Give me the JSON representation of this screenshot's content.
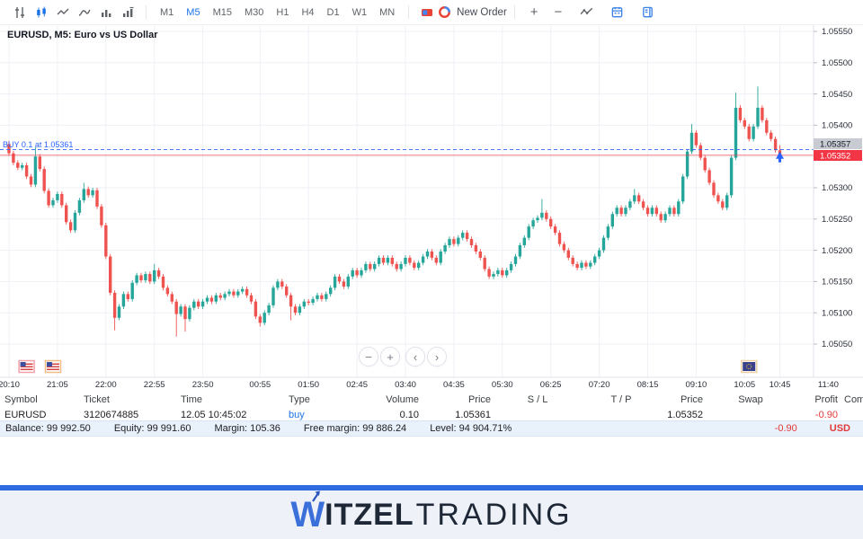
{
  "colors": {
    "candle_up": "#26a69a",
    "candle_down": "#ef5350",
    "accent_blue": "#1a73e8",
    "buy_line_blue": "#2962ff",
    "price_badge_red": "#f23645",
    "ask_badge_gray": "#c9cbd2",
    "grid": "#eef1f6",
    "axis_text": "#2a2e39",
    "profit_red": "#e23a3a",
    "footer_bar": "#2e6be0",
    "logo_blue": "#3b6fd9",
    "logo_dark": "#1d2736"
  },
  "toolbar": {
    "icons_left": [
      "cursor-icon",
      "candles-icon",
      "line-chart-icon",
      "spline-chart-icon",
      "histogram-icon",
      "volume-icon"
    ],
    "timeframes": [
      "M1",
      "M5",
      "M15",
      "M30",
      "H1",
      "H4",
      "D1",
      "W1",
      "MN"
    ],
    "active_timeframe": "M5",
    "new_order_label": "New Order",
    "zoom_in_label": "+",
    "zoom_out_label": "−"
  },
  "chart_nav": {
    "buttons": [
      "−",
      "+",
      "‹",
      "›"
    ]
  },
  "chart_data": {
    "type": "candlestick",
    "title": "EURUSD, M5: Euro vs US Dollar",
    "symbol": "EURUSD",
    "timeframe": "M5",
    "interval_minutes": 5,
    "start_time": "20:10",
    "x_ticks": [
      "20:10",
      "21:05",
      "22:00",
      "22:55",
      "23:50",
      "00:55",
      "01:50",
      "02:45",
      "03:40",
      "04:35",
      "05:30",
      "06:25",
      "07:20",
      "08:15",
      "09:10",
      "10:05",
      "10:45",
      "11:40"
    ],
    "y_ticks": [
      "1.05550",
      "1.05500",
      "1.05450",
      "1.05400",
      "1.05300",
      "1.05250",
      "1.05200",
      "1.05150",
      "1.05100",
      "1.05050"
    ],
    "grid_extra_prices": [
      1.0535
    ],
    "ylim": [
      1.0505,
      1.0555
    ],
    "grid": true,
    "first_open": 1.0537,
    "closes": [
      1.05355,
      1.0534,
      1.05332,
      1.05336,
      1.05318,
      1.05305,
      1.0535,
      1.0533,
      1.05295,
      1.05272,
      1.0528,
      1.0529,
      1.05272,
      1.05245,
      1.05232,
      1.0526,
      1.0528,
      1.05298,
      1.05288,
      1.05296,
      1.0527,
      1.0524,
      1.0519,
      1.05132,
      1.05092,
      1.0511,
      1.0513,
      1.05122,
      1.05148,
      1.0516,
      1.05152,
      1.05162,
      1.0515,
      1.05168,
      1.05158,
      1.0514,
      1.0513,
      1.05118,
      1.05098,
      1.0511,
      1.0509,
      1.05108,
      1.05118,
      1.0511,
      1.05118,
      1.05124,
      1.05118,
      1.05128,
      1.05124,
      1.0513,
      1.05134,
      1.05128,
      1.05134,
      1.05138,
      1.05128,
      1.05118,
      1.05094,
      1.05084,
      1.051,
      1.05112,
      1.0514,
      1.0515,
      1.05142,
      1.05128,
      1.0511,
      1.051,
      1.0511,
      1.05118,
      1.05116,
      1.05122,
      1.05128,
      1.05122,
      1.0513,
      1.0514,
      1.05158,
      1.0515,
      1.05142,
      1.05158,
      1.05168,
      1.0516,
      1.05168,
      1.05178,
      1.0517,
      1.05178,
      1.05188,
      1.0518,
      1.05188,
      1.05178,
      1.0517,
      1.05178,
      1.05188,
      1.0518,
      1.05172,
      1.0518,
      1.0519,
      1.05198,
      1.05188,
      1.0518,
      1.05198,
      1.05208,
      1.05218,
      1.0521,
      1.0522,
      1.05228,
      1.05218,
      1.05208,
      1.05198,
      1.05188,
      1.0517,
      1.05158,
      1.05162,
      1.05168,
      1.0516,
      1.05168,
      1.05178,
      1.0519,
      1.05208,
      1.0522,
      1.05238,
      1.05248,
      1.05252,
      1.0526,
      1.0525,
      1.05238,
      1.05228,
      1.0521,
      1.052,
      1.05188,
      1.05178,
      1.05172,
      1.0518,
      1.05174,
      1.0518,
      1.0519,
      1.052,
      1.0522,
      1.05238,
      1.05258,
      1.05268,
      1.05258,
      1.05268,
      1.05278,
      1.05288,
      1.05278,
      1.05268,
      1.05258,
      1.05268,
      1.05258,
      1.05248,
      1.05258,
      1.05268,
      1.05258,
      1.05278,
      1.05318,
      1.05358,
      1.05388,
      1.05368,
      1.05348,
      1.05328,
      1.05308,
      1.05288,
      1.05278,
      1.05268,
      1.05288,
      1.05348,
      1.05428,
      1.05408,
      1.05398,
      1.05378,
      1.05398,
      1.05428,
      1.05408,
      1.05388,
      1.05378,
      1.0536,
      1.05352
    ],
    "wick_overrides": {
      "0": {
        "h": 1.05375
      },
      "6": {
        "h": 1.05365
      },
      "17": {
        "h": 1.05308
      },
      "24": {
        "l": 1.05072
      },
      "33": {
        "h": 1.05178
      },
      "38": {
        "l": 1.05062
      },
      "40": {
        "l": 1.0507
      },
      "57": {
        "l": 1.05078
      },
      "64": {
        "l": 1.05088
      },
      "121": {
        "h": 1.05282
      },
      "142": {
        "h": 1.05298
      },
      "155": {
        "h": 1.05402
      },
      "165": {
        "h": 1.05452
      },
      "170": {
        "h": 1.05462
      },
      "175": {
        "h": 1.05368,
        "l": 1.05342
      }
    },
    "buy_line": {
      "label": "BUY 0.1 at 1.05361",
      "price": 1.05361
    },
    "bid_line": {
      "price": 1.05352,
      "badge": "1.05352"
    },
    "ask_badge": {
      "price": 1.05357,
      "badge": "1.05357"
    },
    "buy_marker": {
      "time": "10:45",
      "price": 1.05352
    },
    "calendar_events": [
      {
        "country": "US",
        "time": "20:30",
        "border": "#f2a0ac"
      },
      {
        "country": "US",
        "time": "21:00",
        "border": "#f0bc86"
      },
      {
        "country": "EU",
        "time": "10:10",
        "border": "#eccfa4"
      }
    ]
  },
  "positions": {
    "headers": [
      "Symbol",
      "Ticket",
      "Time",
      "Type",
      "Volume",
      "Price",
      "S / L",
      "T / P",
      "Price",
      "Swap",
      "Profit",
      "Comm"
    ],
    "rows": [
      [
        "EURUSD",
        "3120674885",
        "12.05 10:45:02",
        "buy",
        "0.10",
        "1.05361",
        "",
        "",
        "1.05352",
        "",
        "-0.90",
        ""
      ]
    ]
  },
  "account": {
    "items": [
      {
        "label": "Balance:",
        "value": "99 992.50"
      },
      {
        "label": "Equity:",
        "value": "99 991.60"
      },
      {
        "label": "Margin:",
        "value": "105.36"
      },
      {
        "label": "Free margin:",
        "value": "99 886.24"
      },
      {
        "label": "Level:",
        "value": "94 904.71%"
      }
    ],
    "profit": "-0.90",
    "currency": "USD"
  },
  "footer": {
    "brand_w": "W",
    "brand_bold": "ITZEL",
    "brand_light": "TRADING"
  }
}
